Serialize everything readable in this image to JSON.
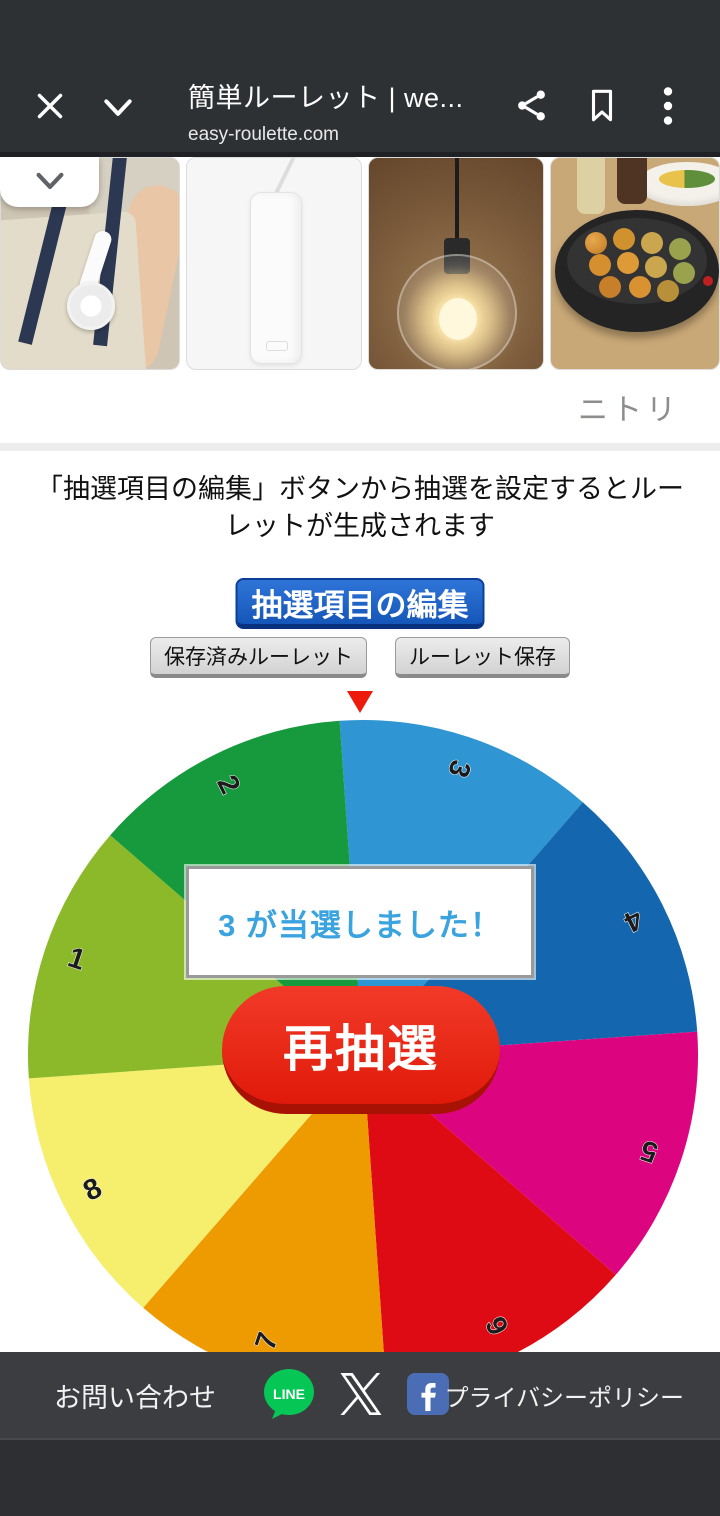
{
  "browser": {
    "title": "簡単ルーレット | we...",
    "url": "easy-roulette.com"
  },
  "suggestions": {
    "collapse_icon": "chevron-down-icon",
    "brand_label": "ニトリ",
    "cards": [
      "handheld-fan-photo",
      "white-device-photo",
      "pendant-light-photo",
      "takoyaki-maker-photo"
    ]
  },
  "content": {
    "instruction": "「抽選項目の編集」ボタンから抽選を設定するとルーレットが生成されます",
    "edit_items_button": "抽選項目の編集",
    "saved_roulette_button": "保存済みルーレット",
    "save_roulette_button": "ルーレット保存",
    "result_message": "3 が当選しました！",
    "respin_button": "再抽選"
  },
  "chart_data": {
    "type": "pie",
    "title": "",
    "categories": [
      "3",
      "4",
      "5",
      "6",
      "7",
      "8",
      "1",
      "2"
    ],
    "values": [
      45,
      45,
      45,
      45,
      45,
      45,
      45,
      45
    ],
    "colors": [
      "#2f96d3",
      "#1467af",
      "#dd0480",
      "#de0a14",
      "#ee9a01",
      "#f6ee6d",
      "#8bb929",
      "#17993e"
    ],
    "order": "clockwise-from-top",
    "rotation_deg": -4,
    "winner": "3",
    "pointer_color": "#ed1b0c",
    "label_color": "#1b1b1b"
  },
  "footer": {
    "contact": "お問い合わせ",
    "privacy": "プライバシーポリシー",
    "social_icons": [
      "line-icon",
      "x-icon",
      "facebook-icon"
    ]
  },
  "colors": {
    "header_bg": "#2e3134",
    "footer_bg": "#3b3d40",
    "primary_button": "#1c5fc4",
    "respin_button": "#e8281e",
    "result_text": "#3ba3de"
  }
}
